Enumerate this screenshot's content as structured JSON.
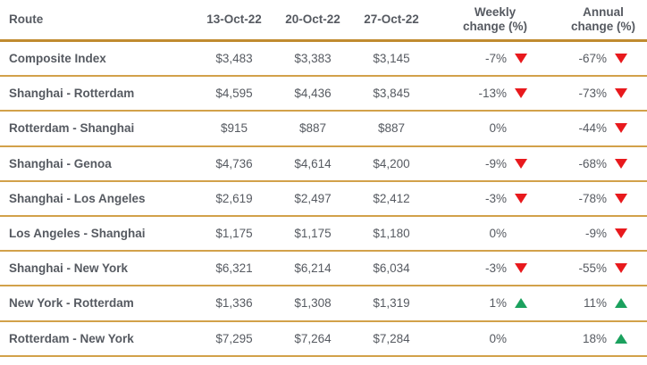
{
  "table": {
    "header": {
      "route": "Route",
      "col1": "13-Oct-22",
      "col2": "20-Oct-22",
      "col3": "27-Oct-22",
      "weekly_line1": "Weekly",
      "weekly_line2": "change (%)",
      "annual_line1": "Annual",
      "annual_line2": "change (%)"
    },
    "rows": [
      {
        "route": "Composite Index",
        "prices": [
          "$3,483",
          "$3,383",
          "$3,145"
        ],
        "weekly": {
          "text": "-7%",
          "dir": "down"
        },
        "annual": {
          "text": "-67%",
          "dir": "down"
        }
      },
      {
        "route": "Shanghai - Rotterdam",
        "prices": [
          "$4,595",
          "$4,436",
          "$3,845"
        ],
        "weekly": {
          "text": "-13%",
          "dir": "down"
        },
        "annual": {
          "text": "-73%",
          "dir": "down"
        }
      },
      {
        "route": "Rotterdam - Shanghai",
        "prices": [
          "$915",
          "$887",
          "$887"
        ],
        "weekly": {
          "text": "0%",
          "dir": "none"
        },
        "annual": {
          "text": "-44%",
          "dir": "down"
        }
      },
      {
        "route": "Shanghai - Genoa",
        "prices": [
          "$4,736",
          "$4,614",
          "$4,200"
        ],
        "weekly": {
          "text": "-9%",
          "dir": "down"
        },
        "annual": {
          "text": "-68%",
          "dir": "down"
        }
      },
      {
        "route": "Shanghai - Los Angeles",
        "prices": [
          "$2,619",
          "$2,497",
          "$2,412"
        ],
        "weekly": {
          "text": "-3%",
          "dir": "down"
        },
        "annual": {
          "text": "-78%",
          "dir": "down"
        }
      },
      {
        "route": "Los Angeles - Shanghai",
        "prices": [
          "$1,175",
          "$1,175",
          "$1,180"
        ],
        "weekly": {
          "text": "0%",
          "dir": "none"
        },
        "annual": {
          "text": "-9%",
          "dir": "down"
        }
      },
      {
        "route": "Shanghai - New York",
        "prices": [
          "$6,321",
          "$6,214",
          "$6,034"
        ],
        "weekly": {
          "text": "-3%",
          "dir": "down"
        },
        "annual": {
          "text": "-55%",
          "dir": "down"
        }
      },
      {
        "route": "New York - Rotterdam",
        "prices": [
          "$1,336",
          "$1,308",
          "$1,319"
        ],
        "weekly": {
          "text": "1%",
          "dir": "up"
        },
        "annual": {
          "text": "11%",
          "dir": "up"
        }
      },
      {
        "route": "Rotterdam - New York",
        "prices": [
          "$7,295",
          "$7,264",
          "$7,284"
        ],
        "weekly": {
          "text": "0%",
          "dir": "none"
        },
        "annual": {
          "text": "18%",
          "dir": "up"
        }
      }
    ]
  },
  "colors": {
    "gold_border": "#c08b2f",
    "gold_separator": "#d2a14a",
    "negative_red": "#e8191d",
    "positive_green": "#1ba15e",
    "text": "#565a61"
  },
  "icons": {
    "down": "red triangle pointing down",
    "up": "green triangle pointing up"
  },
  "chart_data": {
    "type": "table",
    "columns": [
      "Route",
      "13-Oct-22",
      "20-Oct-22",
      "27-Oct-22",
      "Weekly change (%)",
      "Annual change (%)"
    ],
    "rows": [
      [
        "Composite Index",
        3483,
        3383,
        3145,
        -7,
        -67
      ],
      [
        "Shanghai - Rotterdam",
        4595,
        4436,
        3845,
        -13,
        -73
      ],
      [
        "Rotterdam - Shanghai",
        915,
        887,
        887,
        0,
        -44
      ],
      [
        "Shanghai - Genoa",
        4736,
        4614,
        4200,
        -9,
        -68
      ],
      [
        "Shanghai - Los Angeles",
        2619,
        2497,
        2412,
        -3,
        -78
      ],
      [
        "Los Angeles - Shanghai",
        1175,
        1175,
        1180,
        0,
        -9
      ],
      [
        "Shanghai - New York",
        6321,
        6214,
        6034,
        -3,
        -55
      ],
      [
        "New York - Rotterdam",
        1336,
        1308,
        1319,
        1,
        11
      ],
      [
        "Rotterdam - New York",
        7295,
        7264,
        7284,
        0,
        18
      ]
    ]
  }
}
